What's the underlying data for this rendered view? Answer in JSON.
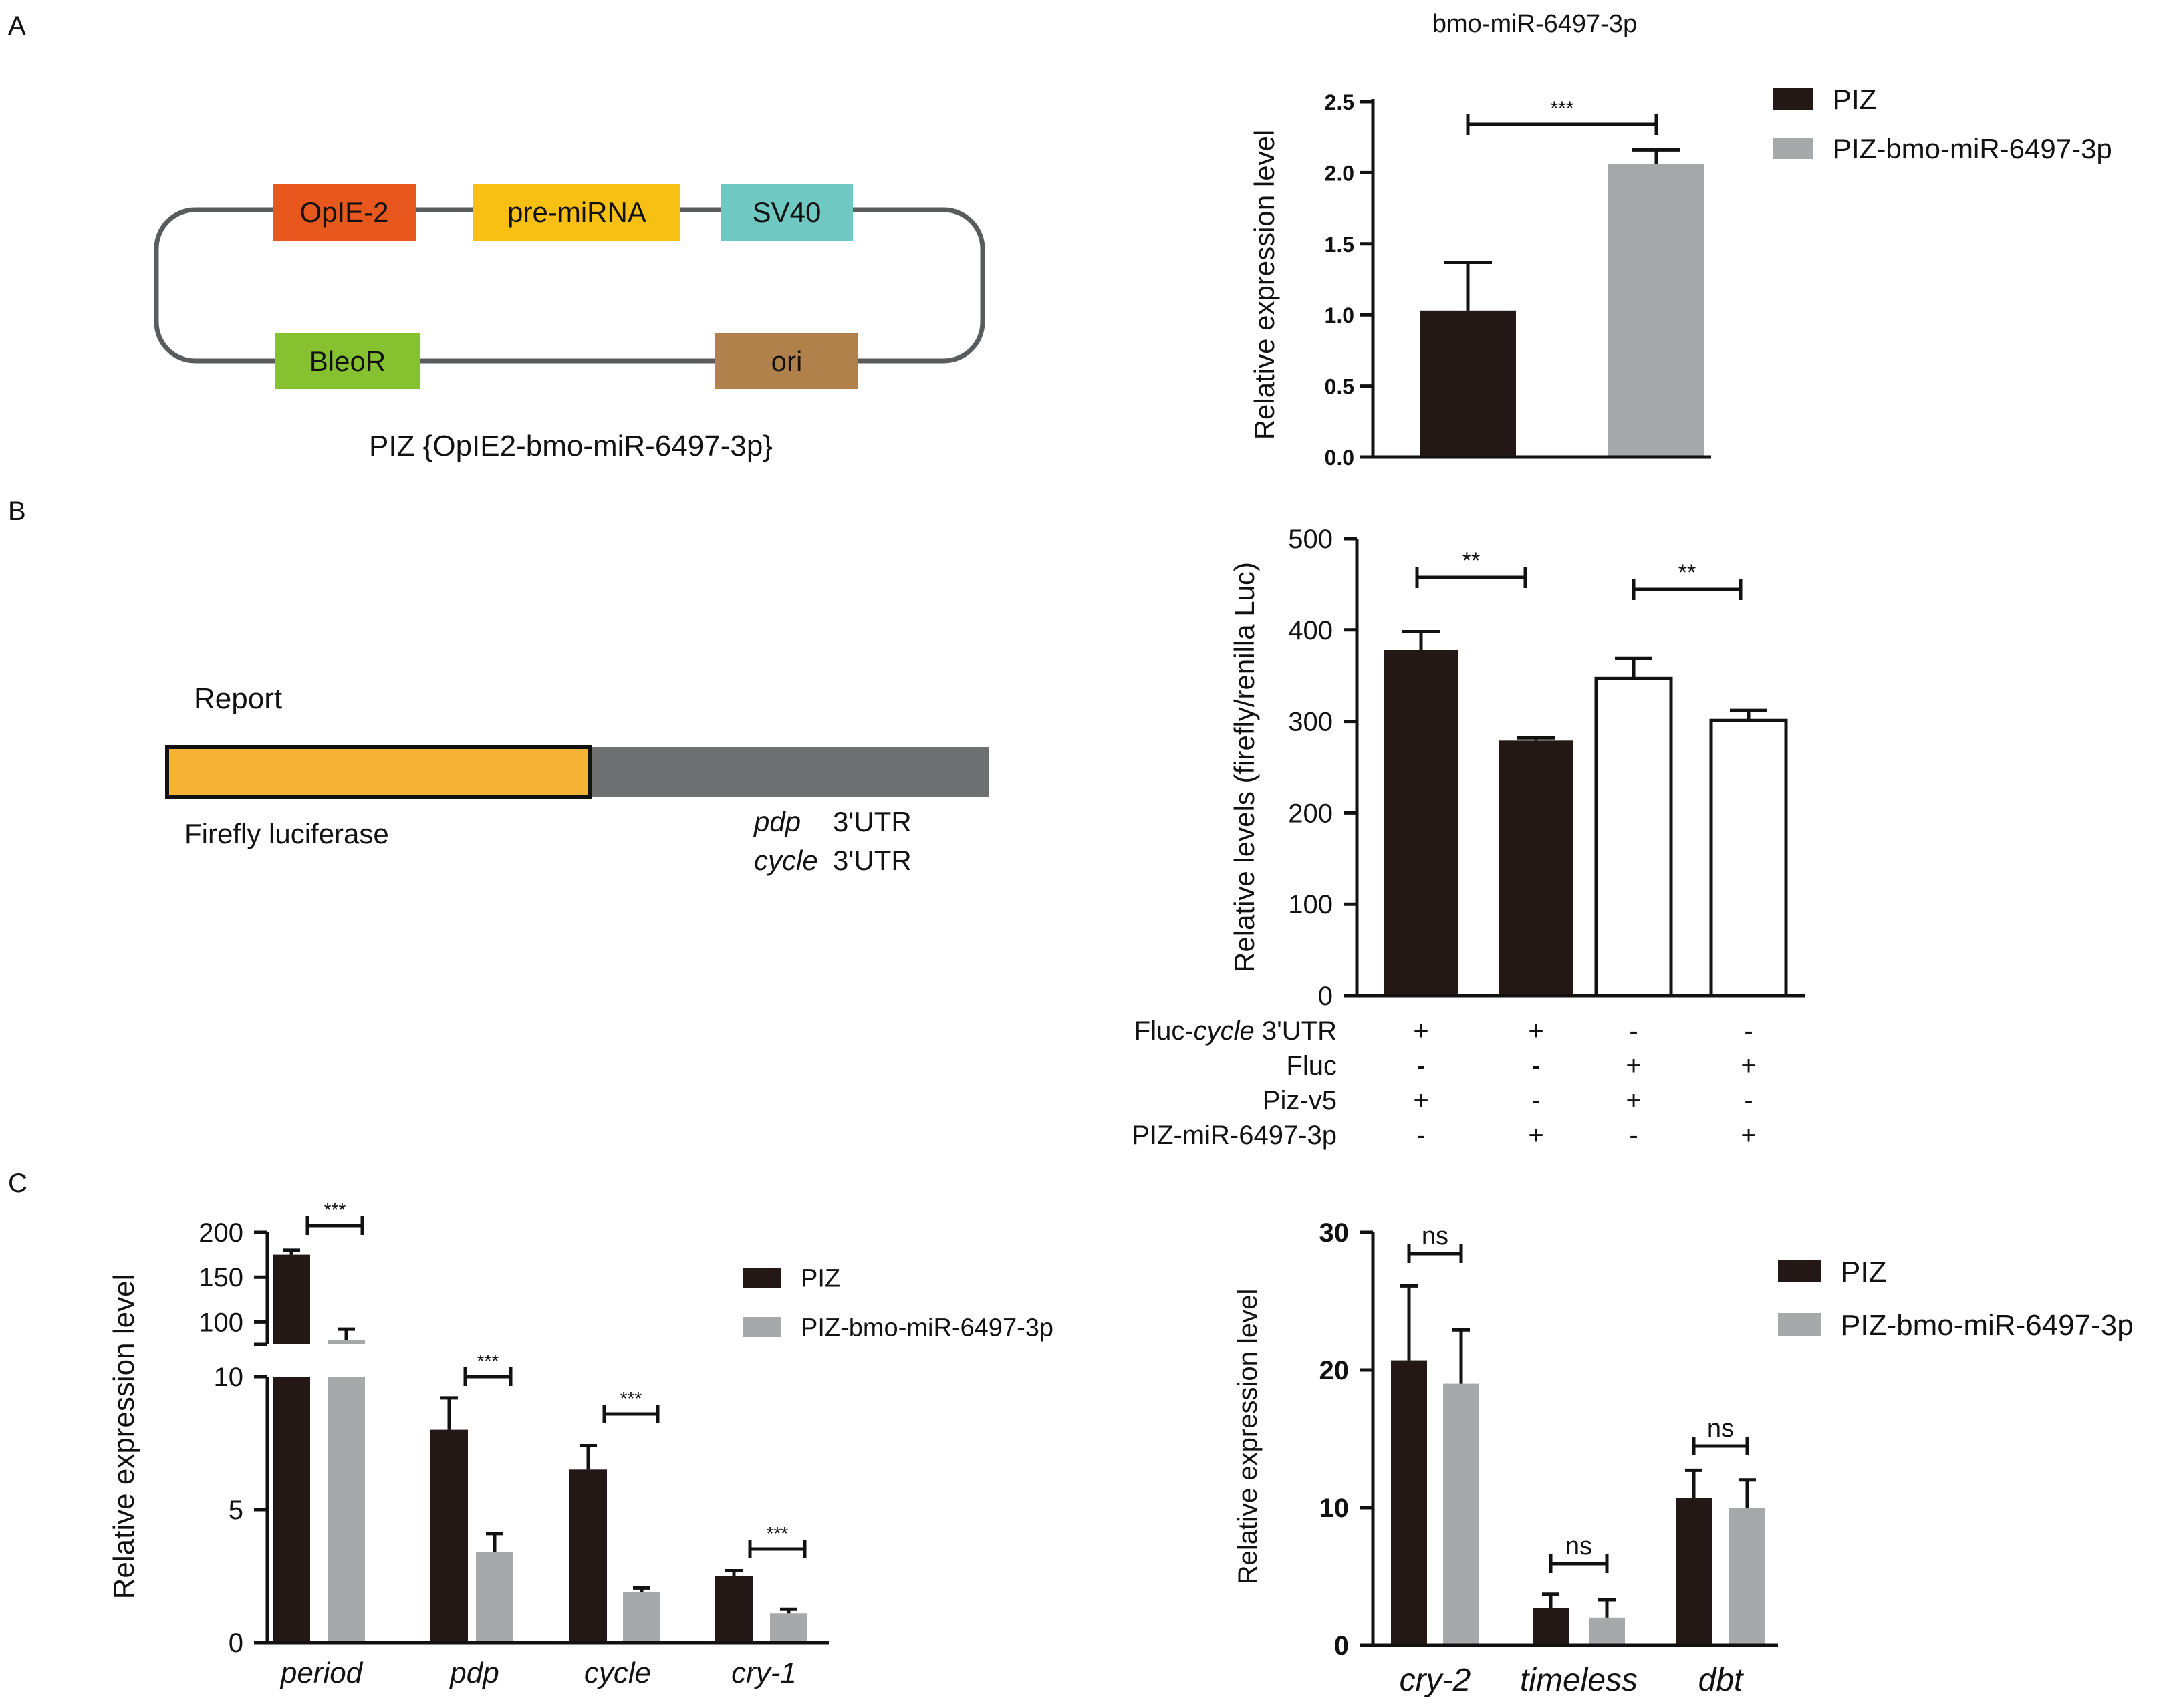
{
  "panel_labels": [
    "A",
    "B",
    "C"
  ],
  "colors": {
    "piz": "#231815",
    "piz_mir": "#a7a8aa",
    "opie2": "#e8571e",
    "premirna": "#f8c012",
    "sv40": "#6fc9c2",
    "bleor": "#86c230",
    "ori": "#b0814b",
    "firefly": "#f5b335",
    "utr": "#6f7072",
    "plasmid_line": "#5a5b5d"
  },
  "plasmid": {
    "elements": [
      "OpIE-2",
      "pre-miRNA",
      "SV40",
      "BleoR",
      "ori"
    ],
    "caption": "PIZ {OpIE2-bmo-miR-6497-3p}"
  },
  "reporter": {
    "title": "Report",
    "firefly_label": "Firefly luciferase",
    "utr_gene_1": "pdp",
    "utr_gene_2": "cycle",
    "utr_suffix": "3'UTR"
  },
  "chart_data": [
    {
      "id": "A",
      "type": "bar",
      "title": "bmo-miR-6497-3p",
      "xlabel": "",
      "ylabel": "Relative expression level",
      "ylim": [
        0,
        2.5
      ],
      "yticks": [
        "0.0",
        "0.5",
        "1.0",
        "1.5",
        "2.0",
        "2.5"
      ],
      "categories": [
        "PIZ",
        "PIZ-bmo-miR-6497-3p"
      ],
      "values": [
        1.03,
        2.06
      ],
      "errors": [
        0.34,
        0.1
      ],
      "significance": [
        "***"
      ],
      "legend": [
        "PIZ",
        "PIZ-bmo-miR-6497-3p"
      ],
      "legend_position": "top-right"
    },
    {
      "id": "B",
      "type": "bar",
      "title": "",
      "xlabel": "",
      "ylabel": "Relative levels (firefly/renilla Luc)",
      "ylim": [
        0,
        500
      ],
      "yticks": [
        "0",
        "100",
        "200",
        "300",
        "400",
        "500"
      ],
      "values": [
        378,
        279,
        347,
        301
      ],
      "errors": [
        20,
        3,
        22,
        11
      ],
      "fills": [
        "filled",
        "filled",
        "open",
        "open"
      ],
      "significance": [
        "**",
        "**"
      ],
      "condition_table": {
        "rows": [
          {
            "label_prefix": "Fluc-",
            "label_italic": "cycle",
            "label_suffix": " 3'UTR",
            "signs": [
              "+",
              "+",
              "-",
              "-"
            ]
          },
          {
            "label_prefix": "Fluc",
            "label_italic": "",
            "label_suffix": "",
            "signs": [
              "-",
              "-",
              "+",
              "+"
            ]
          },
          {
            "label_prefix": "Piz-v5",
            "label_italic": "",
            "label_suffix": "",
            "signs": [
              "+",
              "-",
              "+",
              "-"
            ]
          },
          {
            "label_prefix": "PIZ-miR-6497-3p",
            "label_italic": "",
            "label_suffix": "",
            "signs": [
              "-",
              "+",
              "-",
              "+"
            ]
          }
        ]
      }
    },
    {
      "id": "C-left",
      "type": "bar",
      "title": "",
      "xlabel": "",
      "ylabel": "Relative expression level",
      "axis_break": true,
      "ylim_lower": [
        0,
        10
      ],
      "yticks_lower": [
        "0",
        "5",
        "10"
      ],
      "ylim_upper": [
        75,
        200
      ],
      "yticks_upper": [
        "100",
        "150",
        "200"
      ],
      "categories": [
        "period",
        "pdp",
        "cycle",
        "cry-1"
      ],
      "series": [
        {
          "name": "PIZ",
          "values": [
            175,
            8.0,
            6.5,
            2.5
          ],
          "errors": [
            5,
            1.2,
            0.9,
            0.2
          ]
        },
        {
          "name": "PIZ-bmo-miR-6497-3p",
          "values": [
            80,
            3.4,
            1.9,
            1.1
          ],
          "errors": [
            12,
            0.7,
            0.15,
            0.15
          ]
        }
      ],
      "significance": [
        "***",
        "***",
        "***",
        "***"
      ],
      "legend": [
        "PIZ",
        "PIZ-bmo-miR-6497-3p"
      ],
      "legend_position": "top-right"
    },
    {
      "id": "C-right",
      "type": "bar",
      "title": "",
      "xlabel": "",
      "ylabel": "Relative expression level",
      "ylim": [
        0,
        30
      ],
      "yticks": [
        "0",
        "10",
        "20",
        "30"
      ],
      "categories": [
        "cry-2",
        "timeless",
        "dbt"
      ],
      "series": [
        {
          "name": "PIZ",
          "values": [
            20.7,
            2.7,
            10.7
          ],
          "errors": [
            5.4,
            1.0,
            2.0
          ]
        },
        {
          "name": "PIZ-bmo-miR-6497-3p",
          "values": [
            19.0,
            2.0,
            10.0
          ],
          "errors": [
            3.9,
            1.3,
            2.0
          ]
        }
      ],
      "significance": [
        "ns",
        "ns",
        "ns"
      ],
      "legend": [
        "PIZ",
        "PIZ-bmo-miR-6497-3p"
      ],
      "legend_position": "top-right"
    }
  ]
}
